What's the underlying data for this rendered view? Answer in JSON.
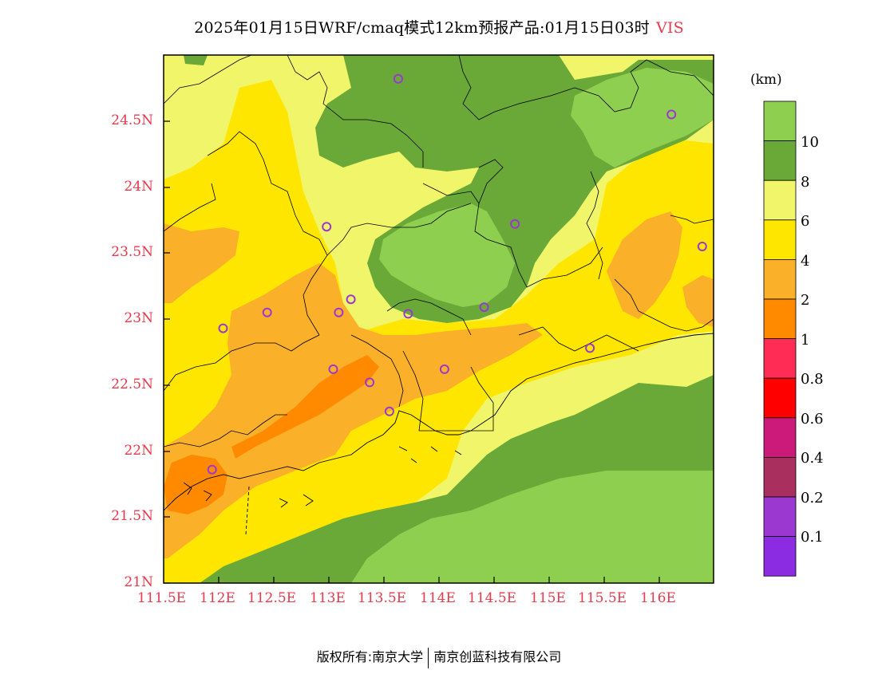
{
  "title": {
    "text": "2025年01月15日WRF/cmaq模式12km预报产品:01月15日03时",
    "variable": "VIS"
  },
  "unit": "(km)",
  "lat_ticks": [
    "21N",
    "21.5N",
    "22N",
    "22.5N",
    "23N",
    "23.5N",
    "24N",
    "24.5N"
  ],
  "lon_ticks": [
    "111.5E",
    "112E",
    "112.5E",
    "113E",
    "113.5E",
    "114E",
    "114.5E",
    "115E",
    "115.5E",
    "116E"
  ],
  "colorbar": {
    "labels": [
      "10",
      "8",
      "6",
      "4",
      "2",
      "1",
      "0.8",
      "0.6",
      "0.4",
      "0.2",
      "0.1"
    ],
    "colors": [
      "#8fcf4f",
      "#6aa838",
      "#f1f56a",
      "#ffe600",
      "#fbb02a",
      "#ff8a00",
      "#ff2d55",
      "#ff0000",
      "#cc1a7a",
      "#a9305e",
      "#9a38cf",
      "#8b2be2"
    ]
  },
  "map_colors": {
    "vis_gt_10": "#8fcf4f",
    "vis_8_10": "#6aa838",
    "vis_6_8": "#f1f56a",
    "vis_4_6": "#ffe600",
    "vis_2_4": "#fbb02a",
    "vis_1_2": "#ff8a00",
    "station_marker": "#9a38cf"
  },
  "stations": [
    {
      "lon": 113.63,
      "lat": 24.82
    },
    {
      "lon": 116.11,
      "lat": 24.55
    },
    {
      "lon": 112.98,
      "lat": 23.7
    },
    {
      "lon": 114.69,
      "lat": 23.72
    },
    {
      "lon": 116.39,
      "lat": 23.55
    },
    {
      "lon": 113.2,
      "lat": 23.15
    },
    {
      "lon": 112.44,
      "lat": 23.05
    },
    {
      "lon": 113.09,
      "lat": 23.05
    },
    {
      "lon": 113.72,
      "lat": 23.04
    },
    {
      "lon": 114.41,
      "lat": 23.09
    },
    {
      "lon": 112.04,
      "lat": 22.93
    },
    {
      "lon": 115.37,
      "lat": 22.78
    },
    {
      "lon": 113.04,
      "lat": 22.62
    },
    {
      "lon": 114.05,
      "lat": 22.62
    },
    {
      "lon": 113.37,
      "lat": 22.52
    },
    {
      "lon": 113.55,
      "lat": 22.3
    },
    {
      "lon": 111.94,
      "lat": 21.86
    }
  ],
  "footer": {
    "left": "版权所有:南京大学",
    "right": "南京创蓝科技有限公司"
  }
}
